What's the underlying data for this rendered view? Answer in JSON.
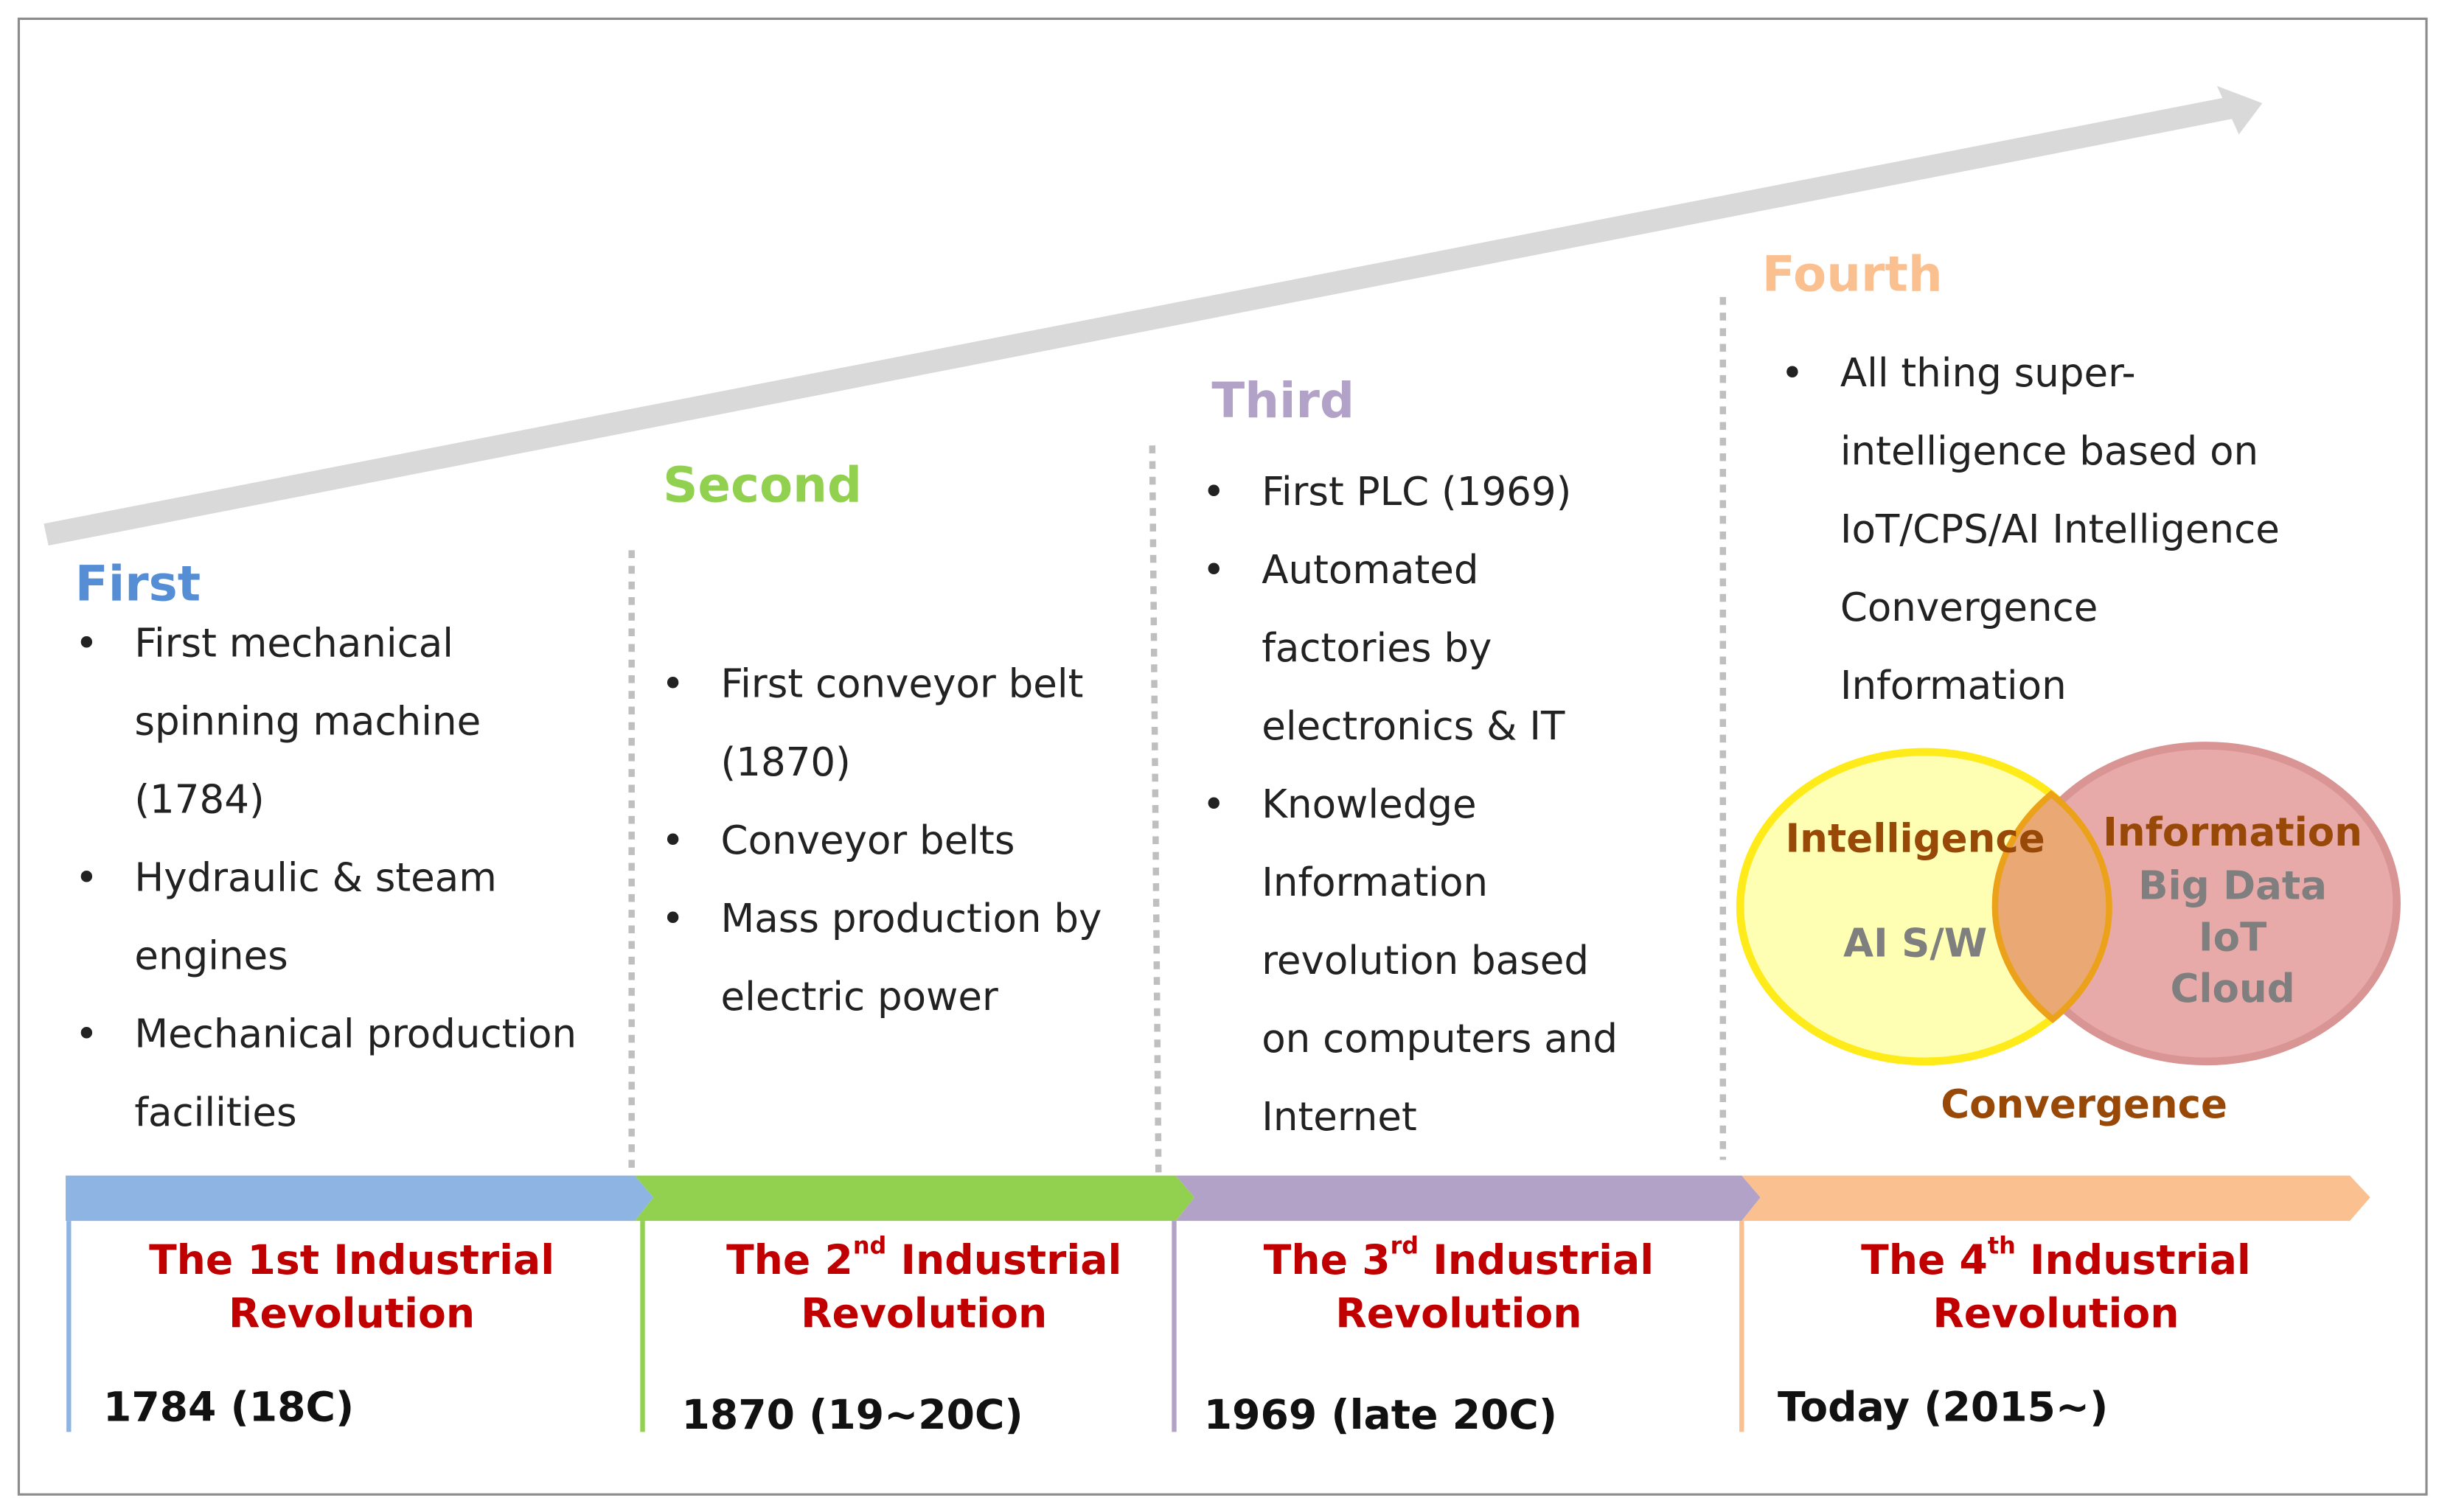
{
  "colors": {
    "first": "#558ed5",
    "second": "#92d050",
    "third": "#b3a2c7",
    "fourth": "#fac090",
    "title_red": "#c00000",
    "venn_brown": "#984807",
    "venn_gray": "#7f7f7f"
  },
  "eras": [
    {
      "heading": "First",
      "bullets": [
        "First mechanical spinning machine (1784)",
        "Hydraulic & steam engines",
        "Mechanical production facilities"
      ],
      "title_pre": "The 1st",
      "title_sup": "",
      "title_post": " Industrial",
      "title_line2": "Revolution",
      "date": "1784 (18C)"
    },
    {
      "heading": "Second",
      "bullets": [
        "First conveyor belt (1870)",
        "Conveyor belts",
        "Mass production by electric power"
      ],
      "title_pre": "The 2",
      "title_sup": "nd",
      "title_post": " Industrial",
      "title_line2": "Revolution",
      "date": "1870 (19~20C)"
    },
    {
      "heading": "Third",
      "bullets": [
        "First PLC (1969)",
        "Automated factories by electronics & IT",
        "Knowledge Information revolution based on computers and Internet"
      ],
      "title_pre": "The 3",
      "title_sup": "rd",
      "title_post": " Industrial",
      "title_line2": "Revolution",
      "date": "1969 (late 20C)"
    },
    {
      "heading": "Fourth",
      "bullets": [
        "All thing super-intelligence based on IoT/CPS/AI Intelligence Convergence Information"
      ],
      "title_pre": "The 4",
      "title_sup": "th",
      "title_post": " Industrial",
      "title_line2": "Revolution",
      "date": "Today (2015~)"
    }
  ],
  "venn": {
    "left_title": "Intelligence",
    "left_items": [
      "AI S/W"
    ],
    "right_title": "Information",
    "right_items": [
      "Big Data",
      "IoT",
      "Cloud"
    ],
    "caption": "Convergence"
  }
}
